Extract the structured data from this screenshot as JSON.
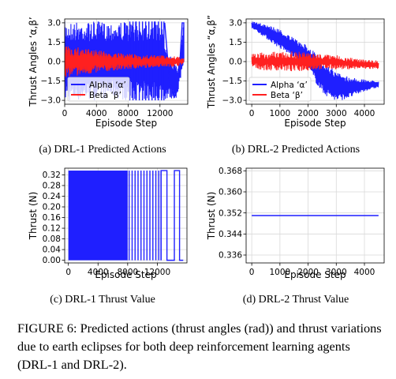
{
  "figure_caption": "FIGURE 6: Predicted actions (thrust angles (rad)) and thrust variations due to earth eclipses for both deep reinforcement learning agents (DRL-1 and DRL-2).",
  "colors": {
    "alpha": "#1f1fff",
    "beta": "#ff2020",
    "thrust": "#1f1fff"
  },
  "chart_data": [
    {
      "id": "a",
      "type": "line",
      "caption": "(a) DRL-1 Predicted Actions",
      "ylabel": "Thrust Angles ‘α,β’",
      "xlabel": "Episode Step",
      "xlim": [
        0,
        15500
      ],
      "ylim": [
        -3.3,
        3.3
      ],
      "xticks": [
        0,
        4000,
        8000,
        12000
      ],
      "yticks": [
        -3.0,
        -1.5,
        0.0,
        1.5,
        3.0
      ],
      "ytick_labels": [
        "−3.0",
        "−1.5",
        "0.0",
        "1.5",
        "3.0"
      ],
      "grid": true,
      "legend": "bottom-left",
      "series": [
        {
          "name": "Alpha ‘α’",
          "color": "#1f1fff",
          "description_points": {
            "x": [
              0,
              2000,
              4000,
              6000,
              7600,
              8200,
              10000,
              12000,
              13400,
              14200,
              15000
            ],
            "y_max": [
              3.1,
              3.1,
              3.1,
              3.1,
              3.1,
              3.1,
              3.1,
              3.1,
              0.4,
              -0.5,
              3.0
            ],
            "y_min": [
              -3.1,
              -3.0,
              -3.0,
              -2.8,
              -3.0,
              -3.0,
              -3.0,
              -3.0,
              -2.9,
              -2.8,
              0.0
            ]
          }
        },
        {
          "name": "Beta ‘β’",
          "color": "#ff2020",
          "description_points": {
            "x": [
              0,
              2000,
              4000,
              6000,
              8000,
              10000,
              12000,
              14000,
              15000
            ],
            "y_max": [
              1.2,
              1.1,
              0.9,
              0.7,
              0.6,
              0.5,
              0.5,
              0.4,
              0.3
            ],
            "y_min": [
              -1.2,
              -1.1,
              -0.9,
              -0.7,
              -0.6,
              -0.5,
              -0.4,
              -0.4,
              -0.2
            ]
          }
        }
      ]
    },
    {
      "id": "b",
      "type": "line",
      "caption": "(b) DRL-2 Predicted Actions",
      "ylabel": "Thrust Angles “α,β”",
      "xlabel": "Episode Step",
      "xlim": [
        -200,
        4700
      ],
      "ylim": [
        -3.3,
        3.3
      ],
      "xticks": [
        0,
        1000,
        2000,
        3000,
        4000
      ],
      "yticks": [
        -3.0,
        -1.5,
        0.0,
        1.5,
        3.0
      ],
      "ytick_labels": [
        "−3.0",
        "−1.5",
        "0.0",
        "1.5",
        "3.0"
      ],
      "grid": true,
      "legend": "bottom-left",
      "series": [
        {
          "name": "Alpha ‘α’",
          "color": "#1f1fff",
          "description_points": {
            "x": [
              0,
              500,
              1000,
              1500,
              2000,
              2500,
              3000,
              3500,
              4000,
              4500
            ],
            "y_max": [
              3.1,
              2.9,
              2.5,
              1.8,
              1.2,
              0.3,
              -0.8,
              -1.2,
              -1.4,
              -1.5
            ],
            "y_min": [
              2.6,
              1.8,
              1.0,
              0.3,
              -0.6,
              -2.5,
              -3.1,
              -2.8,
              -2.3,
              -2.0
            ]
          }
        },
        {
          "name": "Beta ‘β’",
          "color": "#ff2020",
          "description_points": {
            "x": [
              0,
              500,
              1000,
              1500,
              2000,
              2500,
              3000,
              3500,
              4000,
              4500
            ],
            "y_max": [
              0.7,
              0.7,
              0.8,
              0.8,
              0.7,
              0.6,
              0.5,
              0.3,
              0.2,
              0.1
            ],
            "y_min": [
              -0.5,
              -0.7,
              -0.7,
              -0.8,
              -0.7,
              -0.6,
              -0.6,
              -0.6,
              -0.6,
              -0.6
            ]
          }
        }
      ]
    },
    {
      "id": "c",
      "type": "line",
      "caption": "(c) DRL-1 Thrust Value",
      "ylabel": "Thrust (N)",
      "xlabel": "Episode Step",
      "xlim": [
        -500,
        16000
      ],
      "ylim": [
        -0.01,
        0.345
      ],
      "xticks": [
        0,
        4000,
        8000,
        12000
      ],
      "yticks": [
        0.0,
        0.04,
        0.08,
        0.12,
        0.16,
        0.2,
        0.24,
        0.28,
        0.32
      ],
      "ytick_labels": [
        "0.00",
        "0.04",
        "0.08",
        "0.12",
        "0.16",
        "0.20",
        "0.24",
        "0.28",
        "0.32"
      ],
      "grid": true,
      "series": [
        {
          "name": "",
          "color": "#1f1fff",
          "values_range": [
            0.0,
            0.336
          ]
        }
      ]
    },
    {
      "id": "d",
      "type": "line",
      "caption": "(d) DRL-2 Thrust Value",
      "ylabel": "Thrust (N)",
      "xlabel": "Episode Step",
      "xlim": [
        -200,
        4700
      ],
      "ylim": [
        0.333,
        0.369
      ],
      "xticks": [
        0,
        1000,
        2000,
        3000,
        4000
      ],
      "yticks": [
        0.336,
        0.344,
        0.352,
        0.36,
        0.368
      ],
      "ytick_labels": [
        "0.336",
        "0.344",
        "0.352",
        "0.360",
        "0.368"
      ],
      "grid": true,
      "series": [
        {
          "name": "",
          "color": "#1f1fff",
          "x": [
            0,
            4500
          ],
          "y": [
            0.351,
            0.351
          ]
        }
      ]
    }
  ]
}
